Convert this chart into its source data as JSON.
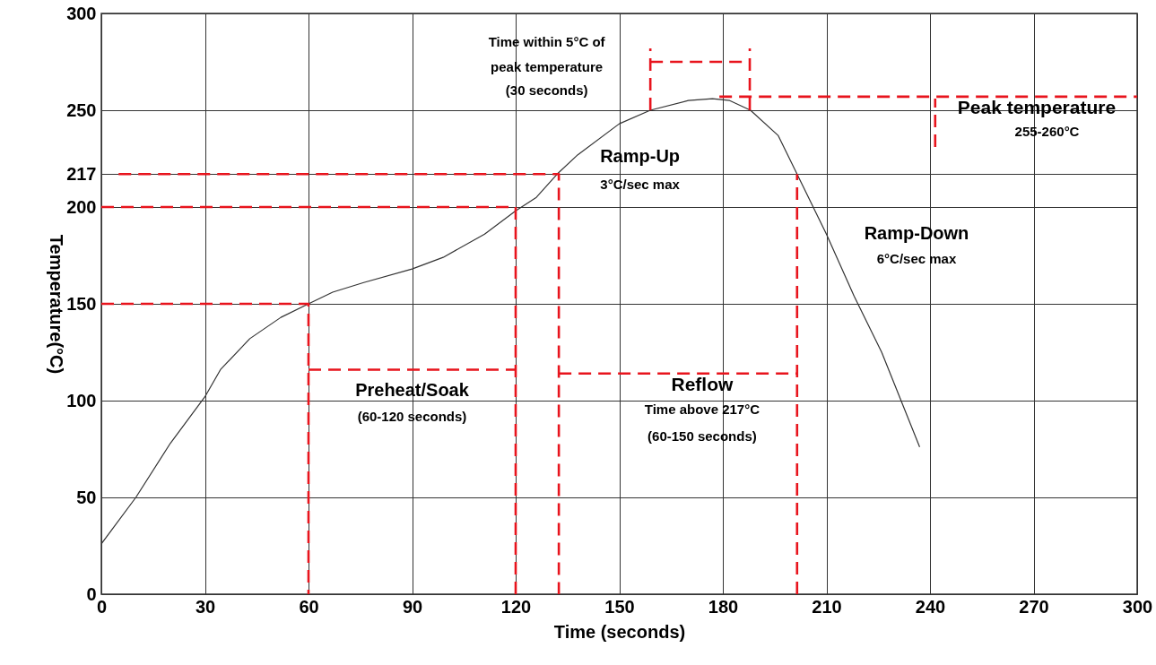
{
  "chart_data": {
    "type": "line",
    "xlabel": "Time (seconds)",
    "ylabel": "Temperature(°C)",
    "xlim": [
      0,
      300
    ],
    "xticks": [
      0,
      30,
      60,
      90,
      120,
      150,
      180,
      210,
      240,
      270,
      300
    ],
    "ylim": [
      0,
      300
    ],
    "yticks": [
      0,
      50,
      100,
      150,
      200,
      217,
      250,
      300
    ],
    "grid": true,
    "series": [
      {
        "color": "#333333",
        "line_style": "solid",
        "x": [
          0,
          10,
          20,
          30,
          34.5,
          43,
          52,
          60,
          67,
          76,
          90,
          99,
          111,
          120,
          126,
          132,
          138,
          150,
          159,
          170,
          177,
          182,
          188,
          196,
          201.5,
          210,
          218,
          226,
          237
        ],
        "values": [
          26,
          50,
          78,
          102,
          116,
          132,
          143,
          150,
          156,
          161,
          168,
          174,
          186,
          198,
          205,
          217,
          227,
          243,
          250,
          255,
          256,
          255,
          250,
          237,
          217,
          186,
          154,
          125,
          76
        ]
      },
      {
        "color": "#e8141d",
        "line_style": "dashed",
        "x": [
          0,
          60,
          60
        ],
        "values": [
          150,
          150,
          0
        ]
      },
      {
        "color": "#e8141d",
        "line_style": "dashed",
        "x": [
          0,
          120,
          120
        ],
        "values": [
          200,
          200,
          0
        ]
      },
      {
        "color": "#e8141d",
        "line_style": "dashed",
        "x": [
          5,
          132.5,
          132.5
        ],
        "values": [
          217,
          217,
          0
        ]
      },
      {
        "color": "#e8141d",
        "line_style": "dashed",
        "x": [
          201.5,
          201.5
        ],
        "values": [
          0,
          217
        ]
      },
      {
        "color": "#e8141d",
        "line_style": "dashed",
        "x": [
          179,
          300
        ],
        "values": [
          257,
          257
        ]
      },
      {
        "color": "#e8141d",
        "line_style": "dashed",
        "x": [
          60,
          120
        ],
        "values": [
          116,
          116
        ]
      },
      {
        "color": "#e8141d",
        "line_style": "dashed",
        "x": [
          132.5,
          201.5
        ],
        "values": [
          114,
          114
        ]
      },
      {
        "color": "#e8141d",
        "line_style": "dashed",
        "x": [
          159,
          187.8
        ],
        "values": [
          275,
          275
        ]
      },
      {
        "color": "#e8141d",
        "line_style": "dashed",
        "x": [
          159,
          159
        ],
        "values": [
          250,
          282
        ]
      },
      {
        "color": "#e8141d",
        "line_style": "dashed",
        "x": [
          187.8,
          187.8
        ],
        "values": [
          250,
          282
        ]
      },
      {
        "color": "#e8141d",
        "line_style": "dashed",
        "x": [
          241.5,
          241.5
        ],
        "values": [
          231,
          256
        ]
      }
    ],
    "annotations": [
      "Time within 5°C of",
      "peak temperature",
      "(30 seconds)",
      "Ramp-Up",
      "3°C/sec max",
      "Ramp-Down",
      "6°C/sec max",
      "Peak temperature",
      "255-260°C",
      "Preheat/Soak",
      "(60-120 seconds)",
      "Reflow",
      "Time above 217°C",
      "(60-150 seconds)"
    ]
  }
}
